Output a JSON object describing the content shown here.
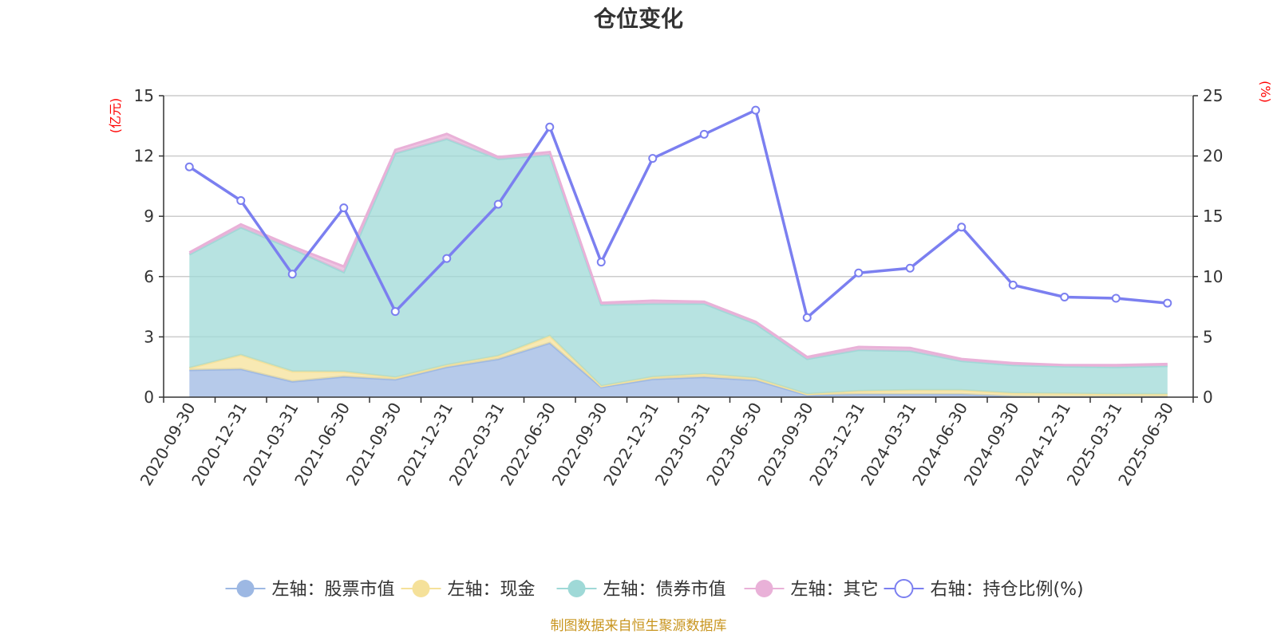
{
  "chart_data": {
    "type": "area",
    "title": "仓位变化",
    "source": "制图数据来自恒生聚源数据库",
    "categories": [
      "2020-09-30",
      "2020-12-31",
      "2021-03-31",
      "2021-06-30",
      "2021-09-30",
      "2021-12-31",
      "2022-03-31",
      "2022-06-30",
      "2022-09-30",
      "2022-12-31",
      "2023-03-31",
      "2023-06-30",
      "2023-09-30",
      "2023-12-31",
      "2024-03-31",
      "2024-06-30",
      "2024-09-30",
      "2024-12-31",
      "2025-03-31",
      "2025-06-30"
    ],
    "y_left": {
      "unit": "(亿元)",
      "ylim": [
        0,
        15
      ],
      "ticks": [
        "0",
        "3",
        "6",
        "9",
        "12",
        "15"
      ]
    },
    "y_right": {
      "unit": "(%)",
      "ylim": [
        0,
        25
      ],
      "ticks": [
        "0",
        "5",
        "10",
        "15",
        "20",
        "25"
      ]
    },
    "grid": true,
    "legend_position": "bottom",
    "series": [
      {
        "name": "左轴：股票市值",
        "axis": "left",
        "type": "area",
        "stack": true,
        "color": "#9db8e3",
        "values": [
          1.35,
          1.4,
          0.78,
          1.02,
          0.88,
          1.5,
          1.9,
          2.7,
          0.5,
          0.9,
          1.0,
          0.85,
          0.1,
          0.15,
          0.15,
          0.15,
          0.05,
          0.03,
          0.03,
          0.03
        ]
      },
      {
        "name": "左轴：现金",
        "axis": "left",
        "type": "area",
        "stack": true,
        "color": "#f5e19a",
        "values": [
          0.1,
          0.7,
          0.5,
          0.25,
          0.1,
          0.1,
          0.15,
          0.35,
          0.05,
          0.1,
          0.15,
          0.1,
          0.05,
          0.15,
          0.2,
          0.2,
          0.15,
          0.15,
          0.12,
          0.12
        ]
      },
      {
        "name": "左轴：债券市值",
        "axis": "left",
        "type": "area",
        "stack": true,
        "color": "#9fd9d7",
        "values": [
          5.65,
          6.35,
          6.1,
          4.95,
          11.15,
          11.25,
          9.8,
          9.0,
          4.05,
          3.65,
          3.5,
          2.7,
          1.75,
          2.05,
          1.95,
          1.45,
          1.4,
          1.35,
          1.35,
          1.4
        ]
      },
      {
        "name": "左轴：其它",
        "axis": "left",
        "type": "area",
        "stack": true,
        "color": "#e9b1d8",
        "values": [
          0.1,
          0.15,
          0.12,
          0.28,
          0.17,
          0.25,
          0.1,
          0.15,
          0.1,
          0.15,
          0.1,
          0.1,
          0.1,
          0.15,
          0.15,
          0.1,
          0.1,
          0.07,
          0.1,
          0.1
        ]
      },
      {
        "name": "右轴：持仓比例(%)",
        "axis": "right",
        "type": "line",
        "color": "#7b7ff0",
        "values": [
          19.1,
          16.3,
          10.2,
          15.7,
          7.1,
          11.5,
          16.0,
          22.4,
          11.2,
          19.8,
          21.8,
          23.8,
          6.6,
          10.3,
          10.7,
          14.1,
          9.3,
          8.3,
          8.2,
          7.8
        ]
      }
    ]
  }
}
